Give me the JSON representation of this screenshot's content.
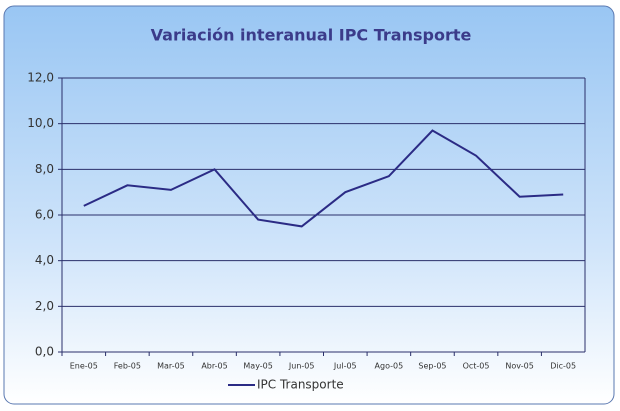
{
  "chart_data": {
    "type": "line",
    "title": "Variación interanual IPC Transporte",
    "categories": [
      "Ene-05",
      "Feb-05",
      "Mar-05",
      "Abr-05",
      "May-05",
      "Jun-05",
      "Jul-05",
      "Ago-05",
      "Sep-05",
      "Oct-05",
      "Nov-05",
      "Dic-05"
    ],
    "series": [
      {
        "name": "IPC Transporte",
        "color": "#2b2b85",
        "values": [
          6.4,
          7.3,
          7.1,
          8.0,
          5.8,
          5.5,
          7.0,
          7.7,
          9.7,
          8.6,
          6.8,
          6.9
        ]
      }
    ],
    "ylim": [
      0,
      12
    ],
    "yticks": [
      {
        "value": 0,
        "label": "0,0"
      },
      {
        "value": 2,
        "label": "2,0"
      },
      {
        "value": 4,
        "label": "4,0"
      },
      {
        "value": 6,
        "label": "6,0"
      },
      {
        "value": 8,
        "label": "8,0"
      },
      {
        "value": 10,
        "label": "10,0"
      },
      {
        "value": 12,
        "label": "12,0"
      }
    ],
    "grid": true,
    "legend": "bottom"
  }
}
